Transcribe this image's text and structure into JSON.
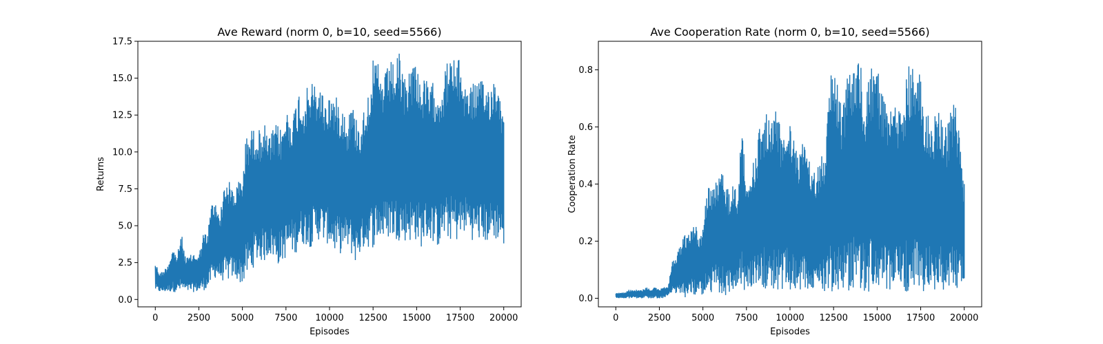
{
  "chart_data": [
    {
      "type": "line",
      "title": "Ave Reward (norm 0, b=10, seed=5566)",
      "xlabel": "Episodes",
      "ylabel": "Returns",
      "xlim": [
        -1000,
        21000
      ],
      "ylim": [
        -0.5,
        17.5
      ],
      "xticks": [
        0,
        2500,
        5000,
        7500,
        10000,
        12500,
        15000,
        17500,
        20000
      ],
      "xtick_labels": [
        "0",
        "2500",
        "5000",
        "7500",
        "10000",
        "12500",
        "15000",
        "17500",
        "20000"
      ],
      "yticks": [
        0.0,
        2.5,
        5.0,
        7.5,
        10.0,
        12.5,
        15.0,
        17.5
      ],
      "ytick_labels": [
        "0.0",
        "2.5",
        "5.0",
        "7.5",
        "10.0",
        "12.5",
        "15.0",
        "17.5"
      ],
      "grid": false,
      "color": "#1f77b4",
      "series": [
        {
          "x": [
            0,
            250,
            500,
            750,
            1000,
            1250,
            1500,
            1750,
            2000,
            2250,
            2500,
            2750,
            3000,
            3250,
            3500,
            3750,
            4000,
            4250,
            4500,
            4750,
            5000,
            5250,
            5500,
            5750,
            6000,
            6250,
            6500,
            6750,
            7000,
            7250,
            7500,
            7750,
            8000,
            8250,
            8500,
            8750,
            9000,
            9250,
            9500,
            9750,
            10000,
            10250,
            10500,
            10750,
            11000,
            11250,
            11500,
            11750,
            12000,
            12250,
            12500,
            12750,
            13000,
            13250,
            13500,
            13750,
            14000,
            14250,
            14500,
            14750,
            15000,
            15250,
            15500,
            15750,
            16000,
            16250,
            16500,
            16750,
            17000,
            17250,
            17500,
            17750,
            18000,
            18250,
            18500,
            18750,
            19000,
            19250,
            19500,
            19750,
            20000
          ],
          "low": [
            0.6,
            0.5,
            0.5,
            0.5,
            0.5,
            0.5,
            0.5,
            0.5,
            0.5,
            0.5,
            0.5,
            0.6,
            0.7,
            1.2,
            1.5,
            1.3,
            1.2,
            1.3,
            1.5,
            1.2,
            1.0,
            1.5,
            1.8,
            2.5,
            2.6,
            2.5,
            3.0,
            2.8,
            2.3,
            2.5,
            2.8,
            3.2,
            3.0,
            3.5,
            3.7,
            3.6,
            3.5,
            4.0,
            4.0,
            3.8,
            3.7,
            3.2,
            3.0,
            3.2,
            3.5,
            3.0,
            2.5,
            3.0,
            3.5,
            3.5,
            3.5,
            3.9,
            4.0,
            4.0,
            4.2,
            4.0,
            4.0,
            3.9,
            4.0,
            3.8,
            4.0,
            3.5,
            4.0,
            4.0,
            3.8,
            3.5,
            4.2,
            4.0,
            4.0,
            3.9,
            4.0,
            4.5,
            4.5,
            3.9,
            4.0,
            3.9,
            3.8,
            4.0,
            4.0,
            4.0,
            3.8
          ],
          "high": [
            2.6,
            1.8,
            2.0,
            2.5,
            3.5,
            3.0,
            4.5,
            2.8,
            3.0,
            3.2,
            3.0,
            4.5,
            4.5,
            6.8,
            6.5,
            6.0,
            8.2,
            8.0,
            7.5,
            8.0,
            8.5,
            11.5,
            11.5,
            11.8,
            11.5,
            12.0,
            11.0,
            11.5,
            12.0,
            11.5,
            13.0,
            12.5,
            13.0,
            14.3,
            13.5,
            14.5,
            14.8,
            14.5,
            14.5,
            13.5,
            14.0,
            14.0,
            13.5,
            13.5,
            12.0,
            13.5,
            12.5,
            12.0,
            13.0,
            14.5,
            16.2,
            16.2,
            15.0,
            15.5,
            16.2,
            16.0,
            16.7,
            15.0,
            15.5,
            16.3,
            16.3,
            14.8,
            15.0,
            14.5,
            14.8,
            14.5,
            14.8,
            16.2,
            16.4,
            16.4,
            16.2,
            14.8,
            14.6,
            14.7,
            15.0,
            14.8,
            14.6,
            14.8,
            15.2,
            14.8,
            12.0
          ]
        }
      ]
    },
    {
      "type": "line",
      "title": "Ave Cooperation Rate (norm 0, b=10, seed=5566)",
      "xlabel": "Episodes",
      "ylabel": "Cooperation Rate",
      "xlim": [
        -1000,
        21000
      ],
      "ylim": [
        -0.03,
        0.9
      ],
      "xticks": [
        0,
        2500,
        5000,
        7500,
        10000,
        12500,
        15000,
        17500,
        20000
      ],
      "xtick_labels": [
        "0",
        "2500",
        "5000",
        "7500",
        "10000",
        "12500",
        "15000",
        "17500",
        "20000"
      ],
      "yticks": [
        0.0,
        0.2,
        0.4,
        0.6,
        0.8
      ],
      "ytick_labels": [
        "0.0",
        "0.2",
        "0.4",
        "0.6",
        "0.8"
      ],
      "grid": false,
      "color": "#1f77b4",
      "series": [
        {
          "x": [
            0,
            250,
            500,
            750,
            1000,
            1250,
            1500,
            1750,
            2000,
            2250,
            2500,
            2750,
            3000,
            3250,
            3500,
            3750,
            4000,
            4250,
            4500,
            4750,
            5000,
            5250,
            5500,
            5750,
            6000,
            6250,
            6500,
            6750,
            7000,
            7250,
            7500,
            7750,
            8000,
            8250,
            8500,
            8750,
            9000,
            9250,
            9500,
            9750,
            10000,
            10250,
            10500,
            10750,
            11000,
            11250,
            11500,
            11750,
            12000,
            12250,
            12500,
            12750,
            13000,
            13250,
            13500,
            13750,
            14000,
            14250,
            14500,
            14750,
            15000,
            15250,
            15500,
            15750,
            16000,
            16250,
            16500,
            16750,
            17000,
            17250,
            17500,
            17750,
            18000,
            18250,
            18500,
            18750,
            19000,
            19250,
            19500,
            19750,
            20000
          ],
          "low": [
            0.0,
            0.0,
            0.0,
            0.0,
            0.0,
            0.0,
            0.0,
            0.0,
            0.0,
            0.0,
            0.0,
            0.0,
            0.01,
            0.02,
            0.01,
            0.02,
            0.0,
            0.02,
            0.01,
            0.01,
            0.0,
            0.01,
            0.02,
            0.02,
            0.01,
            0.01,
            0.01,
            0.02,
            0.02,
            0.02,
            0.03,
            0.04,
            0.04,
            0.03,
            0.03,
            0.03,
            0.03,
            0.03,
            0.02,
            0.03,
            0.02,
            0.02,
            0.01,
            0.02,
            0.03,
            0.02,
            0.02,
            0.03,
            0.01,
            0.03,
            0.02,
            0.02,
            0.02,
            0.03,
            0.02,
            0.03,
            0.02,
            0.02,
            0.02,
            0.01,
            0.02,
            0.02,
            0.02,
            0.03,
            0.03,
            0.02,
            0.03,
            0.02,
            0.03,
            0.02,
            0.03,
            0.02,
            0.03,
            0.02,
            0.03,
            0.03,
            0.03,
            0.04,
            0.02,
            0.05,
            0.07
          ],
          "high": [
            0.02,
            0.02,
            0.02,
            0.03,
            0.03,
            0.03,
            0.03,
            0.04,
            0.03,
            0.04,
            0.03,
            0.04,
            0.04,
            0.13,
            0.16,
            0.19,
            0.23,
            0.22,
            0.28,
            0.22,
            0.24,
            0.41,
            0.38,
            0.42,
            0.48,
            0.41,
            0.38,
            0.42,
            0.38,
            0.63,
            0.39,
            0.45,
            0.5,
            0.6,
            0.64,
            0.67,
            0.66,
            0.68,
            0.58,
            0.62,
            0.67,
            0.55,
            0.53,
            0.55,
            0.52,
            0.47,
            0.45,
            0.5,
            0.53,
            0.81,
            0.79,
            0.78,
            0.66,
            0.8,
            0.8,
            0.82,
            0.85,
            0.7,
            0.78,
            0.82,
            0.82,
            0.73,
            0.68,
            0.66,
            0.67,
            0.66,
            0.66,
            0.82,
            0.81,
            0.8,
            0.79,
            0.66,
            0.65,
            0.63,
            0.67,
            0.64,
            0.6,
            0.66,
            0.7,
            0.55,
            0.4
          ]
        }
      ]
    }
  ]
}
